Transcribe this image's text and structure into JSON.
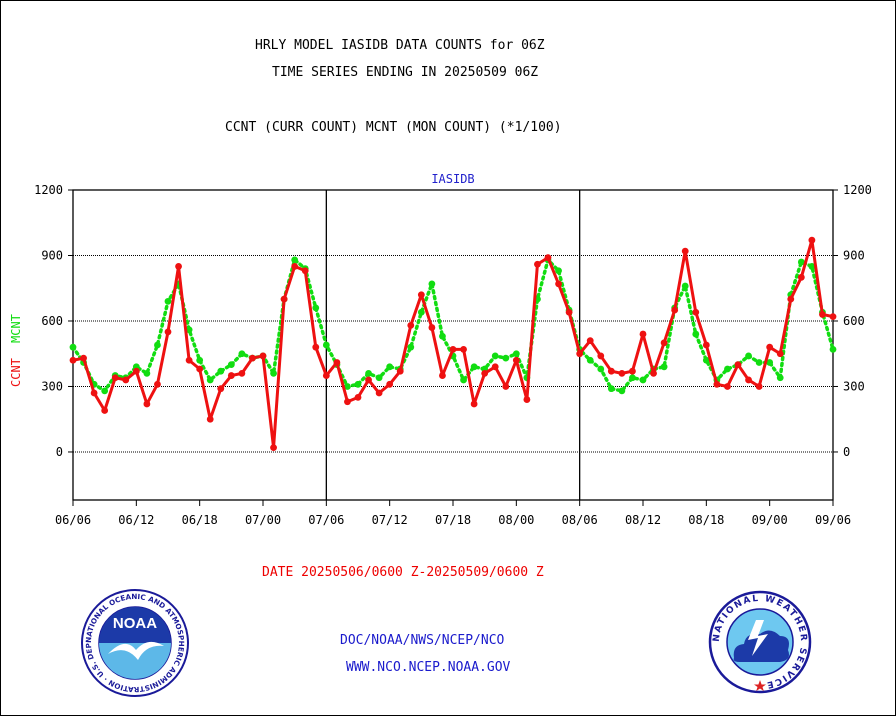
{
  "header": {
    "title_line1": "HRLY MODEL IASIDB DATA COUNTS for 06Z",
    "title_line2": "TIME SERIES ENDING IN 20250509 06Z",
    "title_line3": "CCNT (CURR COUNT) MCNT (MON COUNT) (*1/100)"
  },
  "footer": {
    "date_range": "DATE 20250506/0600 Z-20250509/0600 Z",
    "org": "DOC/NOAA/NWS/NCEP/NCO",
    "url": "WWW.NCO.NCEP.NOAA.GOV"
  },
  "logos": {
    "noaa_text": "NOAA",
    "noaa_ring": "NATIONAL OCEANIC AND ATMOSPHERIC ADMINISTRATION · U.S. DEPARTMENT OF COMMERCE",
    "nws_ring": "NATIONAL WEATHER SERVICE"
  },
  "colors": {
    "ccnt": "#ee1111",
    "mcnt": "#11dd11",
    "plot_title": "#2222cc",
    "axis": "#000000"
  },
  "chart_data": {
    "type": "line",
    "title": "IASIDB",
    "ylabel_ccnt": "CCNT",
    "ylabel_mcnt": "MCNT",
    "ylim": [
      -220,
      1200
    ],
    "yticks": [
      1200,
      900,
      600,
      300,
      0
    ],
    "grid": true,
    "x_tick_labels": [
      "06/06",
      "06/12",
      "06/18",
      "07/00",
      "07/06",
      "07/12",
      "07/18",
      "08/00",
      "08/06",
      "08/12",
      "08/18",
      "09/00",
      "09/06"
    ],
    "x_day_boundaries": [
      24,
      48
    ],
    "x_hours": [
      0,
      1,
      2,
      3,
      4,
      5,
      6,
      7,
      8,
      9,
      10,
      11,
      12,
      13,
      14,
      15,
      16,
      17,
      18,
      19,
      20,
      21,
      22,
      23,
      24,
      25,
      26,
      27,
      28,
      29,
      30,
      31,
      32,
      33,
      34,
      35,
      36,
      37,
      38,
      39,
      40,
      41,
      42,
      43,
      44,
      45,
      46,
      47,
      48,
      49,
      50,
      51,
      52,
      53,
      54,
      55,
      56,
      57,
      58,
      59,
      60,
      61,
      62,
      63,
      64,
      65,
      66,
      67,
      68,
      69,
      70,
      71,
      72
    ],
    "series": [
      {
        "name": "CCNT",
        "values": [
          420,
          430,
          270,
          190,
          340,
          330,
          370,
          220,
          310,
          550,
          850,
          420,
          380,
          150,
          290,
          350,
          360,
          430,
          440,
          20,
          700,
          850,
          830,
          480,
          350,
          410,
          230,
          250,
          330,
          270,
          310,
          370,
          580,
          720,
          570,
          350,
          470,
          470,
          220,
          360,
          390,
          300,
          420,
          240,
          860,
          890,
          770,
          640,
          450,
          510,
          440,
          370,
          360,
          370,
          540,
          360,
          500,
          650,
          920,
          640,
          490,
          310,
          300,
          400,
          330,
          300,
          480,
          450,
          700,
          800,
          970,
          630,
          620
        ]
      },
      {
        "name": "MCNT",
        "values": [
          480,
          410,
          310,
          280,
          350,
          340,
          390,
          360,
          490,
          690,
          770,
          560,
          420,
          330,
          370,
          400,
          450,
          430,
          440,
          360,
          700,
          880,
          840,
          660,
          490,
          400,
          300,
          310,
          360,
          340,
          390,
          380,
          480,
          640,
          770,
          530,
          440,
          330,
          390,
          380,
          440,
          430,
          450,
          340,
          700,
          880,
          830,
          650,
          470,
          420,
          380,
          290,
          280,
          340,
          330,
          380,
          390,
          660,
          760,
          540,
          420,
          330,
          380,
          400,
          440,
          410,
          410,
          340,
          720,
          870,
          850,
          640,
          470
        ]
      }
    ]
  }
}
